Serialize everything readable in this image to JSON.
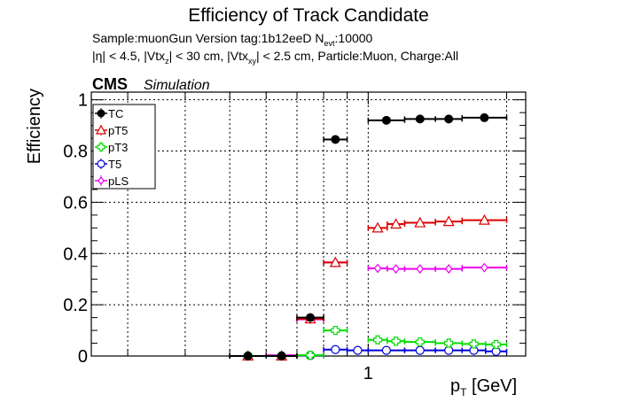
{
  "chart_data": {
    "type": "scatter",
    "title": "Efficiency of Track Candidate",
    "subtitle_line1": {
      "a": "Sample:muonGun   Version tag:1b12eeD  N",
      "sub": "evt",
      "b": ":10000"
    },
    "subtitle_line2": {
      "p1": "|η| < 4.5, |Vtx",
      "s1": "z",
      "p2": "| < 30 cm, |Vtx",
      "s2": "xy",
      "p3": "| < 2.5 cm, Particle:Muon, Charge:All"
    },
    "cms_label": "CMS",
    "cms_extra": "Simulation",
    "ylabel": "Efficiency",
    "xlabel_main": "p",
    "xlabel_sub": "T",
    "xlabel_unit": " [GeV]",
    "x_scale": "log",
    "xlim": [
      0.25,
      2.2
    ],
    "ylim": [
      0,
      1.03
    ],
    "x_tick_labels": [
      {
        "value": 1,
        "label": "1"
      }
    ],
    "y_tick_labels": [
      {
        "value": 0,
        "label": "0"
      },
      {
        "value": 0.2,
        "label": "0.2"
      },
      {
        "value": 0.4,
        "label": "0.4"
      },
      {
        "value": 0.6,
        "label": "0.6"
      },
      {
        "value": 0.8,
        "label": "0.8"
      },
      {
        "value": 1,
        "label": "1"
      }
    ],
    "grid": true,
    "legend_position": "top-left",
    "bin_edges": [
      0.5,
      0.6,
      0.7,
      0.8,
      0.9,
      1.0,
      1.2,
      1.4,
      1.6,
      1.8,
      2.0
    ],
    "series": [
      {
        "name": "TC",
        "color": "#000000",
        "marker": "circle-filled",
        "values": [
          0.0,
          0.0,
          0.15,
          0.845,
          null,
          0.92,
          0.925,
          0.925,
          0.93
        ],
        "bins": [
          [
            0.5,
            0.6
          ],
          [
            0.6,
            0.7
          ],
          [
            0.7,
            0.8
          ],
          [
            0.8,
            0.9
          ],
          [
            0.9,
            1.0
          ],
          [
            1.0,
            1.2
          ],
          [
            1.2,
            1.4
          ],
          [
            1.4,
            1.6
          ],
          [
            1.6,
            2.0
          ]
        ]
      },
      {
        "name": "pT5",
        "color": "#dd0000",
        "marker": "triangle-open",
        "values": [
          0.0,
          0.0,
          0.145,
          0.365,
          0.5,
          0.515,
          0.52,
          0.525,
          0.53
        ],
        "bins": [
          [
            0.5,
            0.6
          ],
          [
            0.6,
            0.7
          ],
          [
            0.7,
            0.8
          ],
          [
            0.8,
            0.9
          ],
          [
            1.0,
            1.1
          ],
          [
            1.1,
            1.2
          ],
          [
            1.2,
            1.4
          ],
          [
            1.4,
            1.6
          ],
          [
            1.6,
            2.0
          ]
        ]
      },
      {
        "name": "pT3",
        "color": "#00dd00",
        "marker": "cross-open",
        "values": [
          0.0,
          0.0,
          0.003,
          0.1,
          0.063,
          0.058,
          0.055,
          0.05,
          0.047,
          0.045
        ],
        "bins": [
          [
            0.5,
            0.6
          ],
          [
            0.6,
            0.7
          ],
          [
            0.7,
            0.8
          ],
          [
            0.8,
            0.9
          ],
          [
            1.0,
            1.1
          ],
          [
            1.1,
            1.2
          ],
          [
            1.2,
            1.4
          ],
          [
            1.4,
            1.6
          ],
          [
            1.6,
            1.8
          ],
          [
            1.8,
            2.0
          ]
        ]
      },
      {
        "name": "T5",
        "color": "#0000dd",
        "marker": "circle-open",
        "values": [
          0.0,
          0.0,
          0.002,
          0.025,
          0.022,
          0.022,
          0.022,
          0.022,
          0.022,
          0.018
        ],
        "bins": [
          [
            0.5,
            0.6
          ],
          [
            0.6,
            0.7
          ],
          [
            0.7,
            0.8
          ],
          [
            0.8,
            0.9
          ],
          [
            0.9,
            1.0
          ],
          [
            1.0,
            1.2
          ],
          [
            1.2,
            1.4
          ],
          [
            1.4,
            1.6
          ],
          [
            1.6,
            1.8
          ],
          [
            1.8,
            2.0
          ]
        ]
      },
      {
        "name": "pLS",
        "color": "#ee00ee",
        "marker": "diamond-open",
        "values": [
          0.0,
          0.003,
          0.143,
          0.365,
          0.342,
          0.34,
          0.34,
          0.34,
          0.345
        ],
        "bins": [
          [
            0.5,
            0.6
          ],
          [
            0.6,
            0.7
          ],
          [
            0.7,
            0.8
          ],
          [
            0.8,
            0.9
          ],
          [
            1.0,
            1.1
          ],
          [
            1.1,
            1.2
          ],
          [
            1.2,
            1.4
          ],
          [
            1.4,
            1.6
          ],
          [
            1.6,
            2.0
          ]
        ]
      }
    ]
  }
}
